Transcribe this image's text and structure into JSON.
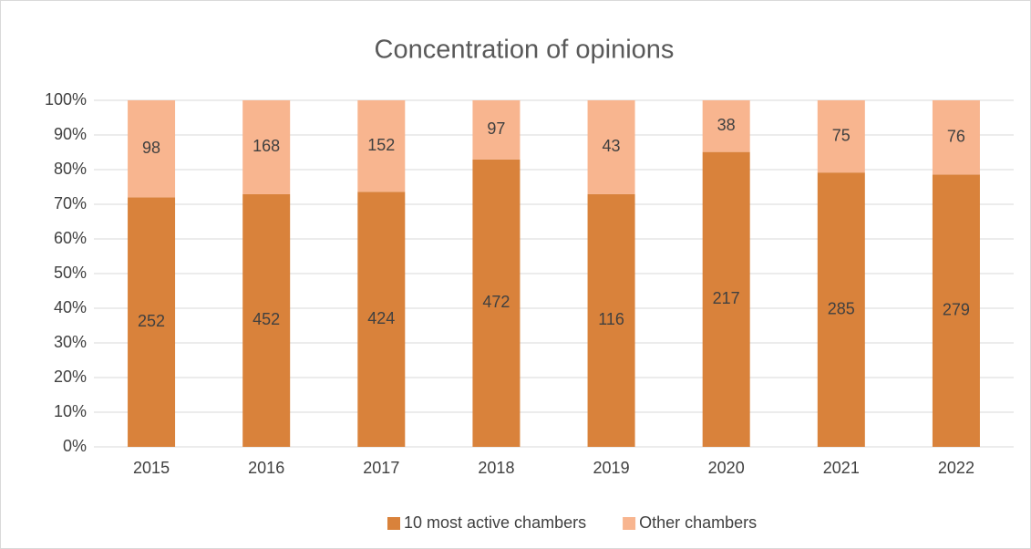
{
  "chart_data": {
    "type": "bar",
    "stacking": "percent",
    "title": "Concentration of opinions",
    "categories": [
      "2015",
      "2016",
      "2017",
      "2018",
      "2019",
      "2020",
      "2021",
      "2022"
    ],
    "series": [
      {
        "name": "10 most active chambers",
        "color": "#d9823b",
        "values": [
          252,
          452,
          424,
          472,
          116,
          217,
          285,
          279
        ]
      },
      {
        "name": "Other chambers",
        "color": "#f8b58f",
        "values": [
          98,
          168,
          152,
          97,
          43,
          38,
          75,
          76
        ]
      }
    ],
    "ylim": [
      0,
      100
    ],
    "yticks": [
      {
        "value": 0,
        "label": "0%"
      },
      {
        "value": 10,
        "label": "10%"
      },
      {
        "value": 20,
        "label": "20%"
      },
      {
        "value": 30,
        "label": "30%"
      },
      {
        "value": 40,
        "label": "40%"
      },
      {
        "value": 50,
        "label": "50%"
      },
      {
        "value": 60,
        "label": "60%"
      },
      {
        "value": 70,
        "label": "70%"
      },
      {
        "value": 80,
        "label": "80%"
      },
      {
        "value": 90,
        "label": "90%"
      },
      {
        "value": 100,
        "label": "100%"
      }
    ],
    "grid": true,
    "legend": "bottom"
  }
}
